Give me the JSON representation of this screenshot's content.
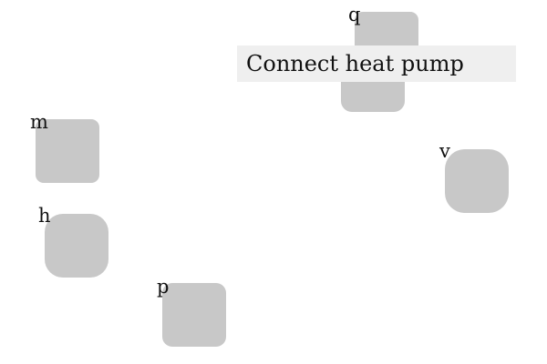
{
  "instruction": "Connect heat pump",
  "tiles": [
    {
      "label": "q"
    },
    {
      "label": "m"
    },
    {
      "label": "v"
    },
    {
      "label": "h"
    },
    {
      "label": "p"
    }
  ],
  "colors": {
    "background": "#ffffff",
    "tile": "#c8c8c8",
    "instruction_background": "#efefef",
    "text": "#111111"
  }
}
